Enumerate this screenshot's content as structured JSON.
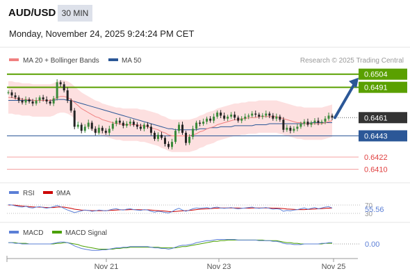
{
  "header": {
    "symbol": "AUD/USD",
    "timeframe": "30 MIN",
    "datetime": "Monday, November 24, 2025 9:24:24 PM CET"
  },
  "legend": {
    "ma20": "MA 20 + Bollinger Bands",
    "ma50": "MA 50",
    "copyright": "Research © 2025 Trading Central",
    "rsi": "RSI",
    "rsi_ma": "9MA",
    "macd": "MACD",
    "macd_signal": "MACD Signal"
  },
  "colors": {
    "ma20": "#f08080",
    "ma50": "#2b5797",
    "bands_fill": "#fde0e0",
    "resistance": "#5aa000",
    "support_blue": "#2b5797",
    "support_red": "#e06060",
    "current": "#333333",
    "arrow": "#2b5797",
    "candle_up": "#3a8a3a",
    "candle_down": "#222222",
    "rsi": "#5b7fd6",
    "rsi_ma": "#cc0000",
    "macd": "#5b7fd6",
    "macd_signal": "#4aa000"
  },
  "chart_data": [
    {
      "type": "candlestick",
      "title": "AUD/USD 30 MIN",
      "x_ticks": [
        "Nov 21",
        "Nov 23",
        "Nov 25"
      ],
      "ylim": [
        0.64,
        0.651
      ],
      "levels": [
        {
          "value": 0.6504,
          "label": "0.6504",
          "kind": "resistance"
        },
        {
          "value": 0.6491,
          "label": "0.6491",
          "kind": "resistance"
        },
        {
          "value": 0.6461,
          "label": "0.6461",
          "kind": "current"
        },
        {
          "value": 0.6443,
          "label": "0.6443",
          "kind": "support"
        },
        {
          "value": 0.6422,
          "label": "0.6422",
          "kind": "support_minor"
        },
        {
          "value": 0.641,
          "label": "0.6410",
          "kind": "support_minor"
        }
      ],
      "target_arrow": {
        "from": 0.6461,
        "to": 0.6504
      },
      "close_path": [
        0.6486,
        0.6483,
        0.6481,
        0.6478,
        0.6476,
        0.6479,
        0.6477,
        0.6475,
        0.6478,
        0.6481,
        0.6479,
        0.6477,
        0.6475,
        0.648,
        0.6496,
        0.6494,
        0.6488,
        0.6478,
        0.6468,
        0.6452,
        0.6454,
        0.6448,
        0.6452,
        0.6456,
        0.645,
        0.6446,
        0.6451,
        0.6448,
        0.6446,
        0.645,
        0.6455,
        0.6458,
        0.6456,
        0.6453,
        0.6455,
        0.6457,
        0.6454,
        0.6452,
        0.645,
        0.6454,
        0.6452,
        0.6446,
        0.644,
        0.6444,
        0.6441,
        0.6435,
        0.6432,
        0.6437,
        0.6448,
        0.6454,
        0.6446,
        0.6436,
        0.6442,
        0.645,
        0.6456,
        0.6455,
        0.6457,
        0.646,
        0.6458,
        0.6462,
        0.6466,
        0.6463,
        0.646,
        0.6462,
        0.6464,
        0.6461,
        0.6458,
        0.646,
        0.6462,
        0.6463,
        0.6465,
        0.6464,
        0.6462,
        0.6463,
        0.6465,
        0.6463,
        0.646,
        0.6462,
        0.6459,
        0.6449,
        0.6451,
        0.6448,
        0.645,
        0.6452,
        0.6455,
        0.6457,
        0.6454,
        0.6456,
        0.6458,
        0.6456,
        0.6457,
        0.646,
        0.6463,
        0.6461
      ],
      "ma20_path": [
        0.6481,
        0.6481,
        0.648,
        0.648,
        0.6479,
        0.6479,
        0.6479,
        0.6478,
        0.6478,
        0.6478,
        0.6478,
        0.6478,
        0.6478,
        0.6479,
        0.6481,
        0.6482,
        0.6482,
        0.6481,
        0.6479,
        0.6476,
        0.6473,
        0.647,
        0.6468,
        0.6466,
        0.6464,
        0.6462,
        0.6461,
        0.6459,
        0.6458,
        0.6457,
        0.6456,
        0.6455,
        0.6455,
        0.6454,
        0.6454,
        0.6454,
        0.6454,
        0.6454,
        0.6453,
        0.6453,
        0.6452,
        0.6451,
        0.645,
        0.6449,
        0.6447,
        0.6446,
        0.6444,
        0.6443,
        0.6443,
        0.6443,
        0.6443,
        0.6443,
        0.6443,
        0.6444,
        0.6445,
        0.6447,
        0.6448,
        0.645,
        0.6451,
        0.6452,
        0.6454,
        0.6455,
        0.6456,
        0.6457,
        0.6458,
        0.6459,
        0.6459,
        0.646,
        0.646,
        0.6461,
        0.6461,
        0.6461,
        0.6462,
        0.6462,
        0.6462,
        0.6462,
        0.6462,
        0.6462,
        0.6461,
        0.646,
        0.6459,
        0.6458,
        0.6457,
        0.6456,
        0.6456,
        0.6455,
        0.6455,
        0.6455,
        0.6455,
        0.6455,
        0.6455,
        0.6456,
        0.6457,
        0.6458
      ],
      "ma50_path": [
        0.6478,
        0.6478,
        0.6478,
        0.6478,
        0.6478,
        0.6478,
        0.6478,
        0.6478,
        0.6478,
        0.6478,
        0.6478,
        0.6478,
        0.6478,
        0.6478,
        0.6479,
        0.6479,
        0.6479,
        0.6478,
        0.6478,
        0.6477,
        0.6476,
        0.6475,
        0.6474,
        0.6473,
        0.6472,
        0.6471,
        0.647,
        0.6469,
        0.6468,
        0.6467,
        0.6466,
        0.6465,
        0.6464,
        0.6463,
        0.6462,
        0.6461,
        0.646,
        0.6459,
        0.6458,
        0.6457,
        0.6456,
        0.6455,
        0.6454,
        0.6453,
        0.6452,
        0.6451,
        0.645,
        0.645,
        0.6449,
        0.6449,
        0.6449,
        0.6449,
        0.6449,
        0.6449,
        0.6449,
        0.645,
        0.645,
        0.645,
        0.6451,
        0.6451,
        0.6451,
        0.6452,
        0.6452,
        0.6452,
        0.6452,
        0.6453,
        0.6453,
        0.6453,
        0.6453,
        0.6453,
        0.6453,
        0.6454,
        0.6454,
        0.6454,
        0.6454,
        0.6455,
        0.6455,
        0.6455,
        0.6455,
        0.6455,
        0.6455,
        0.6455,
        0.6455,
        0.6455,
        0.6455,
        0.6455,
        0.6455,
        0.6456,
        0.6456,
        0.6456,
        0.6456,
        0.6456,
        0.6456,
        0.6456
      ]
    },
    {
      "type": "line",
      "title": "RSI",
      "value_label": "55.56",
      "levels": [
        70,
        30
      ],
      "ylim": [
        0,
        100
      ],
      "series": [
        {
          "name": "RSI",
          "values": [
            72,
            70,
            66,
            62,
            60,
            64,
            58,
            56,
            60,
            62,
            58,
            55,
            58,
            62,
            68,
            62,
            54,
            46,
            40,
            34,
            38,
            42,
            46,
            44,
            40,
            42,
            46,
            44,
            42,
            46,
            50,
            52,
            48,
            46,
            50,
            52,
            48,
            46,
            44,
            48,
            46,
            40,
            36,
            40,
            38,
            34,
            32,
            38,
            48,
            54,
            46,
            40,
            46,
            52,
            56,
            54,
            56,
            58,
            54,
            58,
            60,
            56,
            54,
            56,
            58,
            54,
            52,
            54,
            56,
            58,
            60,
            56,
            54,
            56,
            58,
            54,
            50,
            52,
            50,
            40,
            44,
            42,
            46,
            48,
            52,
            56,
            50,
            54,
            58,
            52,
            56,
            60,
            62,
            55.56
          ]
        },
        {
          "name": "9MA",
          "values": [
            70,
            70,
            69,
            67,
            65,
            64,
            62,
            61,
            60,
            60,
            59,
            58,
            58,
            58,
            60,
            61,
            60,
            57,
            54,
            50,
            48,
            46,
            45,
            44,
            43,
            43,
            43,
            43,
            43,
            44,
            45,
            46,
            47,
            47,
            47,
            48,
            48,
            48,
            47,
            47,
            47,
            46,
            44,
            43,
            42,
            41,
            39,
            38,
            39,
            41,
            42,
            43,
            44,
            46,
            48,
            50,
            51,
            52,
            53,
            54,
            55,
            56,
            56,
            56,
            56,
            56,
            56,
            55,
            55,
            55,
            56,
            56,
            56,
            56,
            56,
            56,
            55,
            55,
            54,
            53,
            51,
            50,
            49,
            48,
            48,
            48,
            49,
            50,
            51,
            52,
            53,
            54,
            55,
            56
          ]
        }
      ]
    },
    {
      "type": "line",
      "title": "MACD",
      "value_label": "0.00",
      "ylim": [
        -0.0015,
        0.0015
      ],
      "series": [
        {
          "name": "MACD",
          "values": [
            0.0002,
            0.0002,
            0.0001,
            0.0001,
            0,
            0,
            0,
            0,
            0,
            0,
            0,
            0,
            0,
            0.0001,
            0.0002,
            0.0003,
            0.0003,
            0.0002,
            0,
            -0.0003,
            -0.0005,
            -0.0007,
            -0.0008,
            -0.0009,
            -0.001,
            -0.001,
            -0.001,
            -0.0009,
            -0.0009,
            -0.0008,
            -0.0007,
            -0.0006,
            -0.0006,
            -0.0005,
            -0.0005,
            -0.0004,
            -0.0004,
            -0.0004,
            -0.0004,
            -0.0004,
            -0.0004,
            -0.0005,
            -0.0006,
            -0.0006,
            -0.0007,
            -0.0007,
            -0.0008,
            -0.0007,
            -0.0005,
            -0.0003,
            -0.0002,
            -0.0002,
            -0.0001,
            0,
            0.0002,
            0.0003,
            0.0004,
            0.0005,
            0.0005,
            0.0006,
            0.0007,
            0.0007,
            0.0007,
            0.0007,
            0.0007,
            0.0007,
            0.0006,
            0.0006,
            0.0006,
            0.0006,
            0.0006,
            0.0006,
            0.0005,
            0.0005,
            0.0005,
            0.0005,
            0.0004,
            0.0004,
            0.0003,
            0.0001,
            0,
            0,
            -0.0001,
            -0.0001,
            -0.0001,
            0,
            0,
            0,
            0,
            0,
            0.0001,
            0.0001,
            0.0002,
            0.0002
          ]
        },
        {
          "name": "MACD Signal",
          "values": [
            0.0002,
            0.0002,
            0.0002,
            0.0001,
            0.0001,
            0.0001,
            0,
            0,
            0,
            0,
            0,
            0,
            0,
            0,
            0.0001,
            0.0001,
            0.0002,
            0.0002,
            0.0001,
            0,
            -0.0001,
            -0.0003,
            -0.0004,
            -0.0005,
            -0.0006,
            -0.0007,
            -0.0008,
            -0.0008,
            -0.0008,
            -0.0008,
            -0.0008,
            -0.0007,
            -0.0007,
            -0.0006,
            -0.0006,
            -0.0005,
            -0.0005,
            -0.0005,
            -0.0005,
            -0.0005,
            -0.0005,
            -0.0005,
            -0.0005,
            -0.0005,
            -0.0006,
            -0.0006,
            -0.0006,
            -0.0006,
            -0.0006,
            -0.0005,
            -0.0004,
            -0.0004,
            -0.0003,
            -0.0002,
            -0.0001,
            0,
            0.0001,
            0.0002,
            0.0003,
            0.0004,
            0.0004,
            0.0005,
            0.0005,
            0.0006,
            0.0006,
            0.0006,
            0.0006,
            0.0006,
            0.0006,
            0.0006,
            0.0006,
            0.0006,
            0.0006,
            0.0006,
            0.0005,
            0.0005,
            0.0005,
            0.0005,
            0.0004,
            0.0003,
            0.0002,
            0.0002,
            0.0001,
            0.0001,
            0,
            0,
            0,
            0,
            0,
            0,
            0,
            0.0001,
            0.0001,
            0.0001
          ]
        }
      ]
    }
  ]
}
